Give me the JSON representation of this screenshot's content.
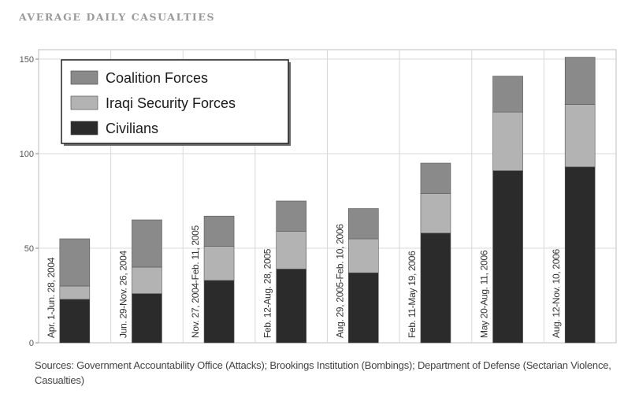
{
  "chart_data": {
    "type": "bar",
    "stacked": true,
    "orientation": "vertical",
    "title": "AVERAGE DAILY CASUALTIES",
    "xlabel": "",
    "ylabel": "",
    "ylim": [
      0,
      155
    ],
    "yticks": [
      0,
      50,
      100,
      150
    ],
    "grid": true,
    "legend_position": "top-left",
    "categories": [
      "Apr. 1-Jun. 28, 2004",
      "Jun. 29-Nov. 26, 2004",
      "Nov. 27, 2004-Feb. 11, 2005",
      "Feb. 12-Aug. 28, 2005",
      "Aug. 29, 2005-Feb. 10, 2006",
      "Feb. 11-May 19, 2006",
      "May 20-Aug. 11, 2006",
      "Aug. 12-Nov. 10, 2006"
    ],
    "series": [
      {
        "name": "Civilians",
        "color": "#2b2b2b",
        "values": [
          23,
          26,
          33,
          39,
          37,
          58,
          91,
          93
        ]
      },
      {
        "name": "Iraqi Security Forces",
        "color": "#b3b3b3",
        "values": [
          7,
          14,
          18,
          20,
          18,
          21,
          31,
          33
        ]
      },
      {
        "name": "Coalition Forces",
        "color": "#8a8a8a",
        "values": [
          25,
          25,
          16,
          16,
          16,
          16,
          19,
          25
        ]
      }
    ],
    "legend_order": [
      "Coalition Forces",
      "Iraqi Security Forces",
      "Civilians"
    ],
    "source": "Sources: Government Accountability Office (Attacks); Brookings Institution (Bombings); Department of Defense (Sectarian Violence, Casualties)"
  }
}
